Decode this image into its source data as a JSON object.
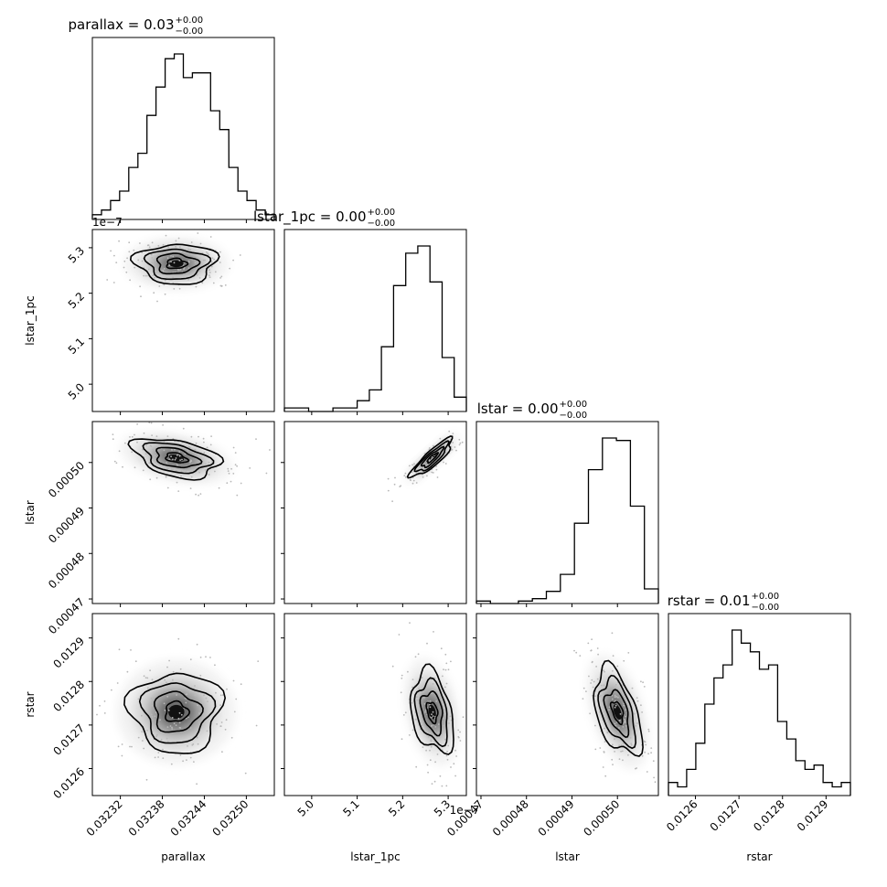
{
  "chart_data": {
    "type": "corner",
    "variables": [
      "parallax",
      "lstar_1pc",
      "lstar",
      "rstar"
    ],
    "titles": [
      {
        "base": "parallax = 0.03",
        "sup": "+0.00",
        "sub": "−0.00"
      },
      {
        "base": "lstar_1pc = 0.00",
        "sup": "+0.00",
        "sub": "−0.00"
      },
      {
        "base": "lstar = 0.00",
        "sup": "+0.00",
        "sub": "−0.00"
      },
      {
        "base": "rstar = 0.01",
        "sup": "+0.00",
        "sub": "−0.00"
      }
    ],
    "axis_labels": [
      "parallax",
      "lstar_1pc",
      "lstar",
      "rstar"
    ],
    "ranges": [
      [
        0.03228,
        0.03254
      ],
      [
        4.94e-07,
        5.34e-07
      ],
      [
        0.000469,
        0.000509
      ],
      [
        0.012538,
        0.012956
      ]
    ],
    "offset_text": "1e−7",
    "ticks": [
      {
        "values": [
          0.03232,
          0.03238,
          0.03244,
          0.0325
        ],
        "labels": [
          "0.03232",
          "0.03238",
          "0.03244",
          "0.03250"
        ]
      },
      {
        "values": [
          5e-07,
          5.1e-07,
          5.2e-07,
          5.3e-07
        ],
        "labels": [
          "5.0",
          "5.1",
          "5.2",
          "5.3"
        ]
      },
      {
        "values": [
          0.00047,
          0.00048,
          0.00049,
          0.0005
        ],
        "labels": [
          "0.00047",
          "0.00048",
          "0.00049",
          "0.00050"
        ]
      },
      {
        "values": [
          0.0126,
          0.0127,
          0.0128,
          0.0129
        ],
        "labels": [
          "0.0126",
          "0.0127",
          "0.0128",
          "0.0129"
        ]
      }
    ],
    "marginals": [
      {
        "variable": "parallax",
        "counts": [
          1,
          2,
          4,
          6,
          11,
          14,
          22,
          28,
          34,
          35,
          30,
          31,
          31,
          23,
          19,
          11,
          6,
          4,
          2,
          1
        ]
      },
      {
        "variable": "lstar_1pc",
        "counts": [
          1,
          1,
          0,
          0,
          1,
          1,
          3,
          6,
          18,
          35,
          44,
          46,
          36,
          15,
          4
        ]
      },
      {
        "variable": "lstar",
        "counts": [
          1,
          0,
          0,
          1,
          2,
          5,
          12,
          33,
          55,
          68,
          67,
          40,
          6
        ]
      },
      {
        "variable": "rstar",
        "counts": [
          3,
          2,
          6,
          12,
          21,
          27,
          30,
          38,
          35,
          33,
          29,
          30,
          17,
          13,
          8,
          6,
          7,
          3,
          2,
          3
        ]
      }
    ],
    "joint_centers": {
      "lstar_1pc|parallax": {
        "x": 0.0324,
        "y": 5.265e-07
      },
      "lstar|parallax": {
        "x": 0.0324,
        "y": 0.000501
      },
      "lstar|lstar_1pc": {
        "x": 5.265e-07,
        "y": 0.000501
      },
      "rstar|parallax": {
        "x": 0.0324,
        "y": 0.01273
      },
      "rstar|lstar_1pc": {
        "x": 5.265e-07,
        "y": 0.01273
      },
      "rstar|lstar": {
        "x": 0.0005,
        "y": 0.01273
      }
    }
  }
}
